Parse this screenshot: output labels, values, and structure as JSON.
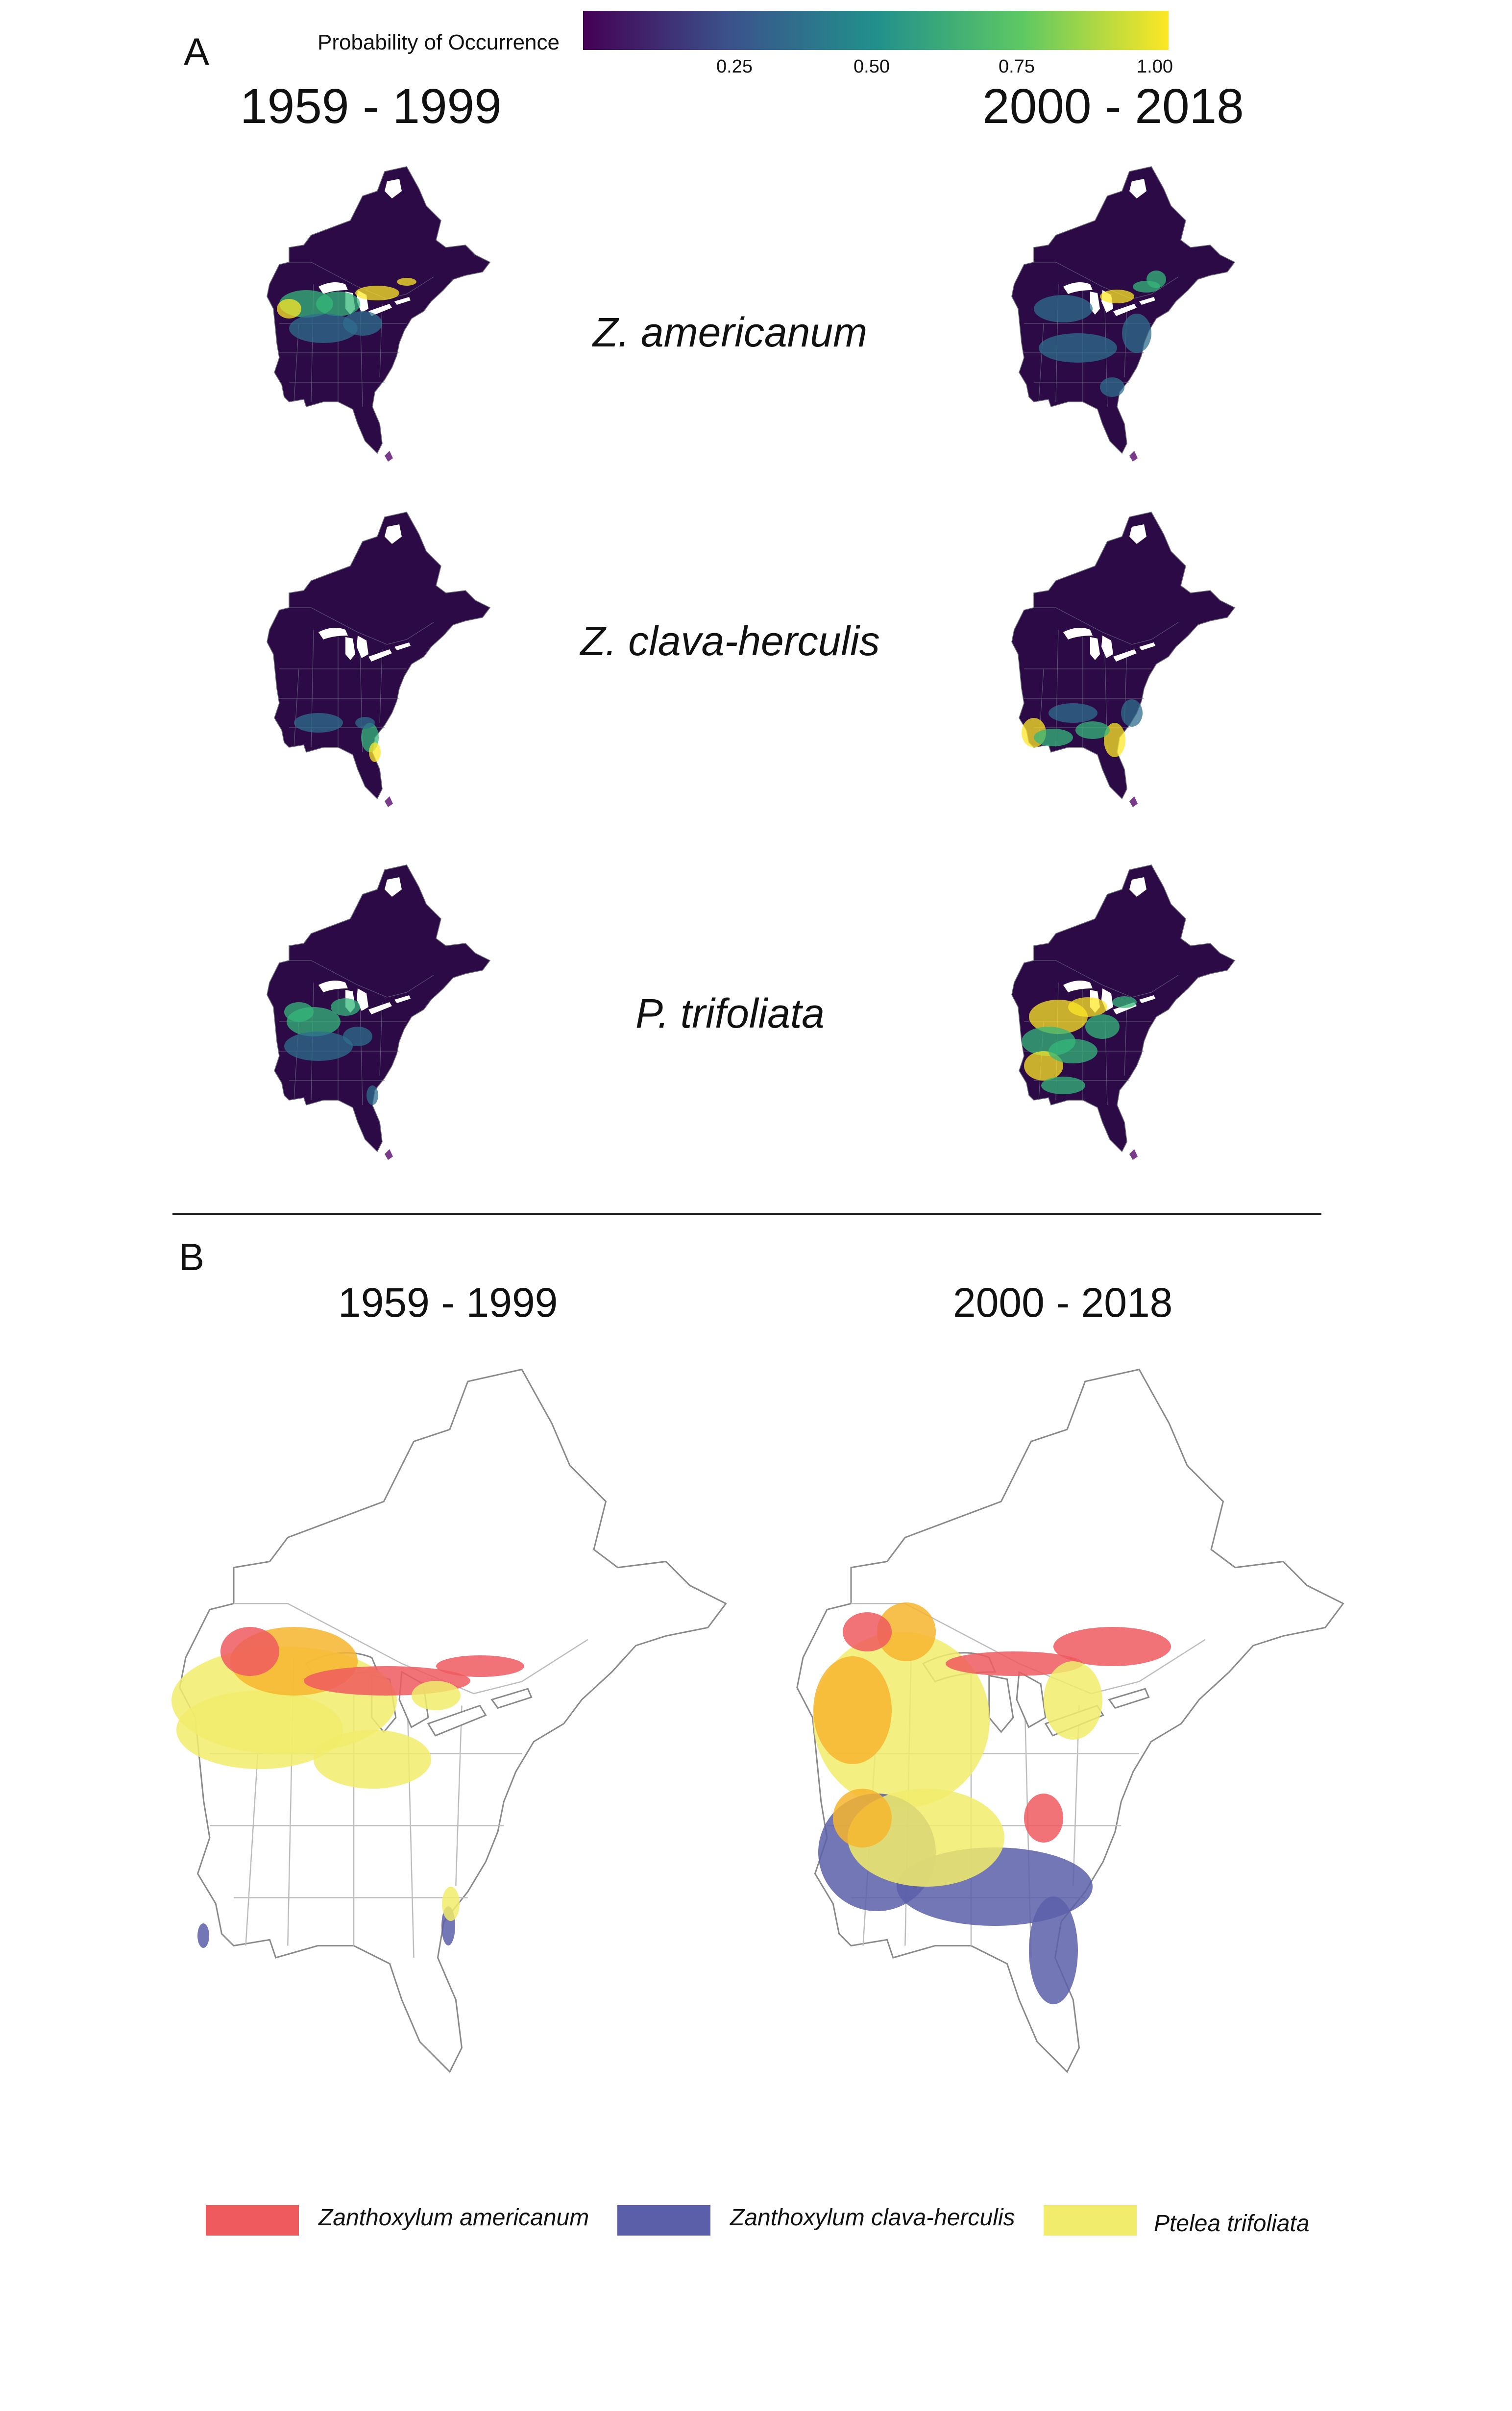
{
  "panel_a": {
    "label": "A",
    "colorbar": {
      "title": "Probability of Occurrence",
      "ticks": [
        "0.25",
        "0.50",
        "0.75",
        "1.00"
      ],
      "colors": [
        "#440154",
        "#3b528b",
        "#21908c",
        "#5dc863",
        "#fde725"
      ]
    },
    "periods": [
      "1959 - 1999",
      "2000 - 2018"
    ],
    "species": [
      "Z. americanum",
      "Z. clava-herculis",
      "P. trifoliata"
    ],
    "map_background": "#2b0a45",
    "hotspot_colors": {
      "low": "#2f6e8e",
      "mid": "#35b779",
      "high": "#fde725"
    }
  },
  "panel_b": {
    "label": "B",
    "periods": [
      "1959 - 1999",
      "2000 - 2018"
    ],
    "legend": [
      {
        "name": "Zanthoxylum americanum",
        "color": "#ef5a5f"
      },
      {
        "name": "Zanthoxylum clava-herculis",
        "color": "#5b5fa9"
      },
      {
        "name": "Ptelea trifoliata",
        "color": "#f1ec6b"
      }
    ],
    "overlap_color": "#f6b52e",
    "outline_color": "#8a8a8a"
  }
}
